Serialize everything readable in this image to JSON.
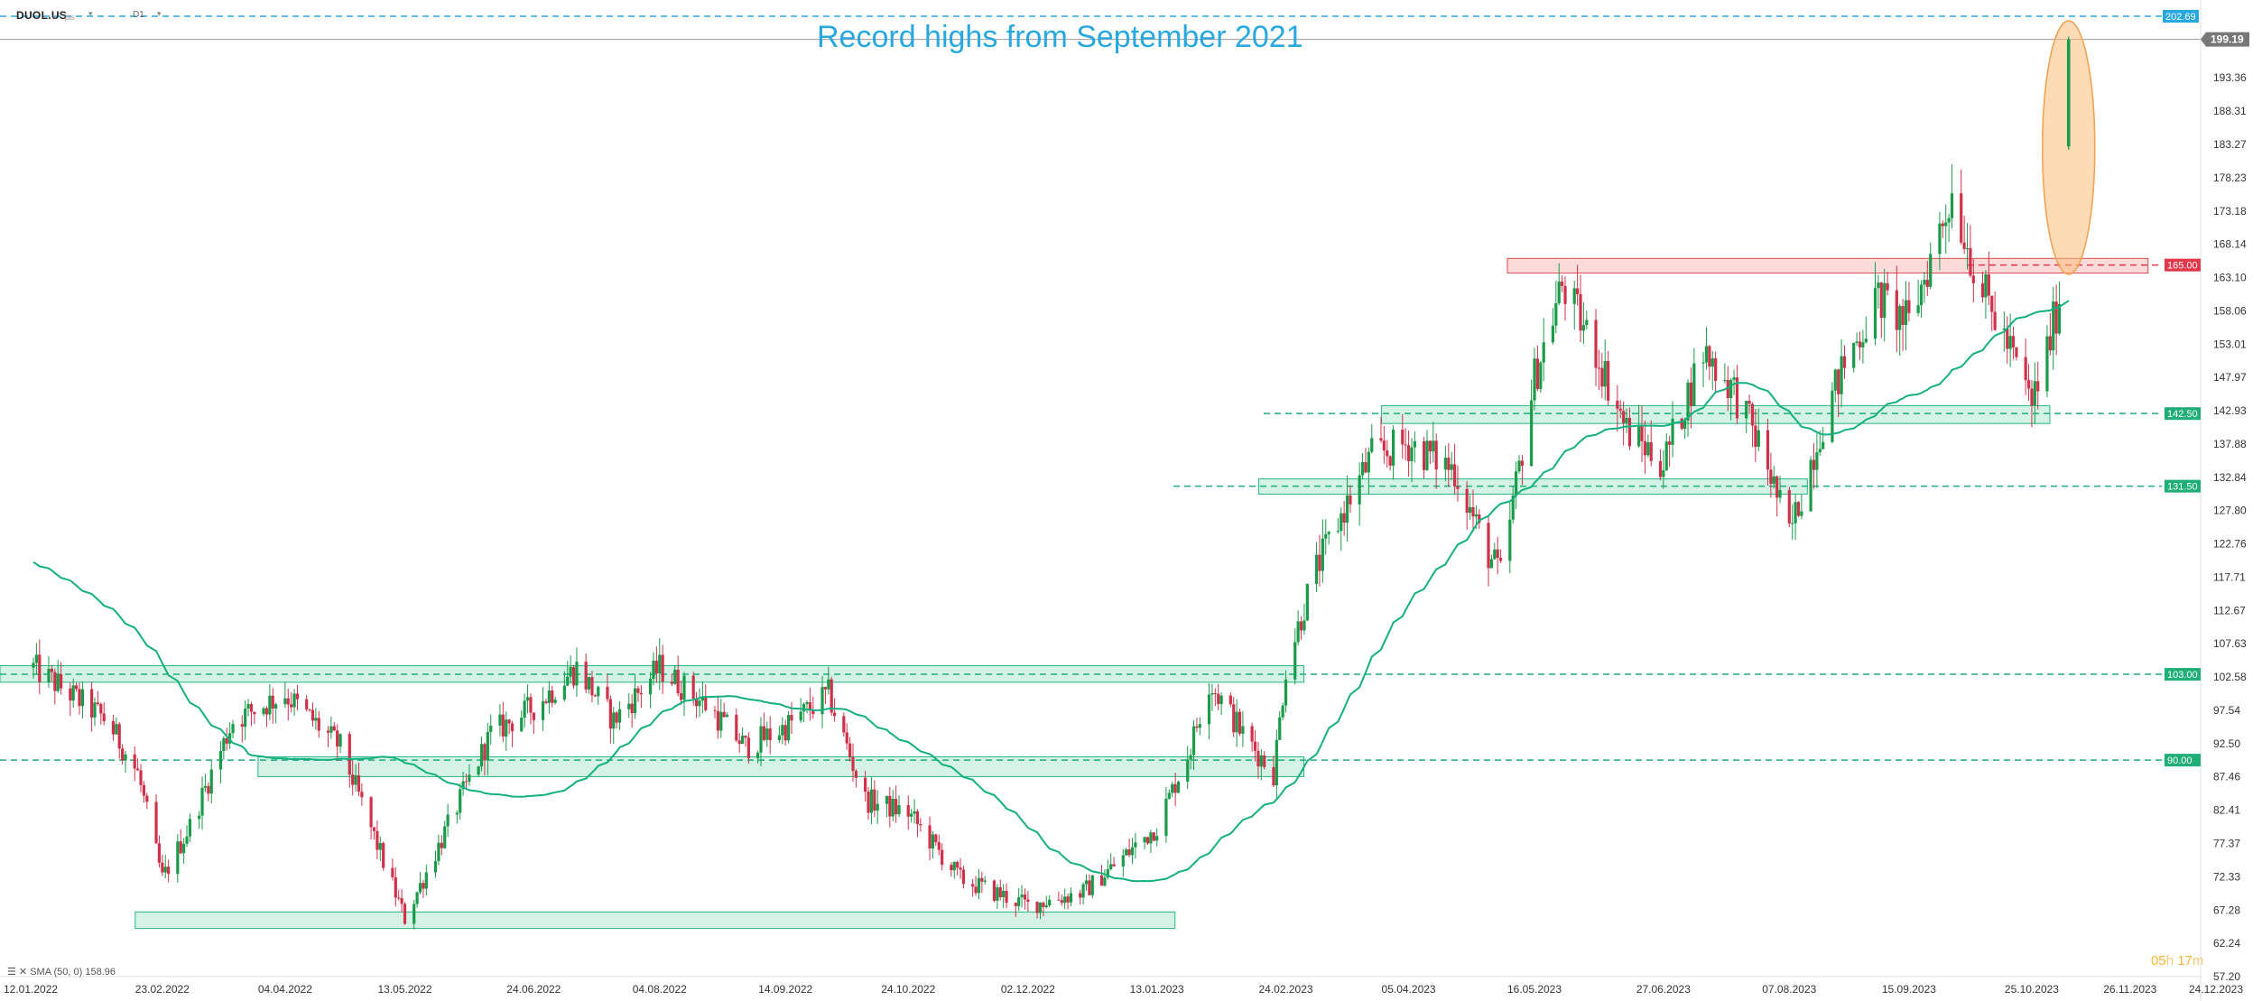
{
  "header": {
    "symbol": "DUOL.US",
    "symbol_sub": "pts",
    "timeframe": "D1"
  },
  "title": "Record highs from September 2021",
  "indicator_label": "SMA (50, 0)  158.96",
  "timer": {
    "hours": "05",
    "h": "h",
    "minutes": "17",
    "m": "m"
  },
  "colors": {
    "up": "#1a9b4a",
    "down": "#d0314a",
    "sma": "#14b07f",
    "support_fill": "rgba(60,200,140,0.22)",
    "support_stroke": "#26b57e",
    "resistance_fill": "rgba(240,90,90,0.22)",
    "resistance_stroke": "#d84a4a",
    "record_line": "#29a8e0",
    "ellipse_fill": "rgba(252,190,120,0.55)",
    "ellipse_stroke": "#f0a050"
  },
  "chart_data": {
    "type": "candlestick",
    "title": "Record highs from September 2021",
    "y_axis_ticks": [
      57.2,
      62.24,
      67.28,
      72.33,
      77.37,
      82.41,
      87.46,
      92.5,
      97.54,
      102.58,
      107.63,
      112.67,
      117.71,
      122.76,
      127.8,
      132.84,
      137.88,
      142.93,
      147.97,
      153.01,
      158.06,
      163.1,
      168.14,
      173.18,
      178.23,
      183.27,
      188.31,
      193.36
    ],
    "ylim": [
      57.2,
      202.69
    ],
    "x_axis_ticks": [
      "12.01.2022",
      "23.02.2022",
      "04.04.2022",
      "13.05.2022",
      "24.06.2022",
      "04.08.2022",
      "14.09.2022",
      "24.10.2022",
      "02.12.2022",
      "13.01.2023",
      "24.02.2023",
      "05.04.2023",
      "16.05.2023",
      "27.06.2023",
      "07.08.2023",
      "15.09.2023",
      "25.10.2023",
      "26.11.2023",
      "24.12.2023"
    ],
    "price_markers": [
      {
        "label": "202.69",
        "value": 202.69,
        "kind": "record"
      },
      {
        "label": "199.19",
        "value": 199.19,
        "kind": "current"
      },
      {
        "label": "165.00",
        "value": 165.0,
        "kind": "resistance"
      },
      {
        "label": "142.50",
        "value": 142.5,
        "kind": "support"
      },
      {
        "label": "131.50",
        "value": 131.5,
        "kind": "support"
      },
      {
        "label": "103.00",
        "value": 103.0,
        "kind": "support"
      },
      {
        "label": "90.00",
        "value": 90.0,
        "kind": "support"
      }
    ],
    "zones": [
      {
        "kind": "support",
        "value": 103.0,
        "low": 101.8,
        "high": 104.3,
        "from": "12.01.2022",
        "to": "24.02.2023"
      },
      {
        "kind": "support",
        "value": 90.0,
        "low": 87.5,
        "high": 90.5,
        "from": "04.04.2022",
        "to": "24.02.2023"
      },
      {
        "kind": "support",
        "value": 66.0,
        "low": 64.5,
        "high": 67.0,
        "from": "23.02.2022",
        "to": "13.01.2023"
      },
      {
        "kind": "support",
        "value": 131.5,
        "low": 130.3,
        "high": 132.6,
        "from": "24.02.2023",
        "to": "07.08.2023"
      },
      {
        "kind": "support",
        "value": 142.5,
        "low": 141.0,
        "high": 143.7,
        "from": "05.04.2023",
        "to": "25.10.2023"
      },
      {
        "kind": "resistance",
        "value": 165.0,
        "low": 163.8,
        "high": 166.0,
        "from": "16.05.2023",
        "to": "26.11.2023"
      }
    ],
    "sma": {
      "period": 50,
      "last_value": 158.96
    },
    "ohlc_anchors": [
      [
        "12.01.2022",
        104
      ],
      [
        "05.02.2022",
        96
      ],
      [
        "15.02.2022",
        88
      ],
      [
        "23.02.2022",
        72
      ],
      [
        "04.03.2022",
        80
      ],
      [
        "18.03.2022",
        96
      ],
      [
        "04.04.2022",
        100
      ],
      [
        "22.04.2022",
        92
      ],
      [
        "13.05.2022",
        66
      ],
      [
        "25.05.2022",
        78
      ],
      [
        "10.06.2022",
        94
      ],
      [
        "24.06.2022",
        98
      ],
      [
        "08.07.2022",
        104
      ],
      [
        "20.07.2022",
        96
      ],
      [
        "04.08.2022",
        104
      ],
      [
        "20.08.2022",
        98
      ],
      [
        "01.09.2022",
        92
      ],
      [
        "14.09.2022",
        95
      ],
      [
        "28.09.2022",
        100
      ],
      [
        "10.10.2022",
        84
      ],
      [
        "24.10.2022",
        82
      ],
      [
        "10.11.2022",
        72
      ],
      [
        "02.12.2022",
        68
      ],
      [
        "20.12.2022",
        70
      ],
      [
        "30.12.2022",
        74
      ],
      [
        "13.01.2023",
        80
      ],
      [
        "24.01.2023",
        92
      ],
      [
        "30.01.2023",
        102
      ],
      [
        "10.02.2023",
        94
      ],
      [
        "20.02.2023",
        88
      ],
      [
        "24.02.2023",
        104
      ],
      [
        "05.03.2023",
        118
      ],
      [
        "15.03.2023",
        128
      ],
      [
        "24.03.2023",
        136
      ],
      [
        "05.04.2023",
        138
      ],
      [
        "20.04.2023",
        134
      ],
      [
        "30.04.2023",
        122
      ],
      [
        "05.05.2023",
        118
      ],
      [
        "16.05.2023",
        148
      ],
      [
        "25.05.2023",
        162
      ],
      [
        "05.06.2023",
        152
      ],
      [
        "15.06.2023",
        140
      ],
      [
        "27.06.2023",
        135
      ],
      [
        "10.07.2023",
        152
      ],
      [
        "20.07.2023",
        146
      ],
      [
        "30.07.2023",
        136
      ],
      [
        "07.08.2023",
        124
      ],
      [
        "17.08.2023",
        140
      ],
      [
        "25.08.2023",
        150
      ],
      [
        "05.09.2023",
        160
      ],
      [
        "15.09.2023",
        156
      ],
      [
        "22.09.2023",
        166
      ],
      [
        "29.09.2023",
        176
      ],
      [
        "08.10.2023",
        162
      ],
      [
        "18.10.2023",
        152
      ],
      [
        "25.10.2023",
        144
      ],
      [
        "30.10.2023",
        152
      ],
      [
        "03.11.2023",
        160
      ],
      [
        "06.11.2023",
        182
      ]
    ],
    "last_candle": {
      "open": 183.0,
      "high": 199.6,
      "low": 182.5,
      "close": 199.19
    }
  }
}
